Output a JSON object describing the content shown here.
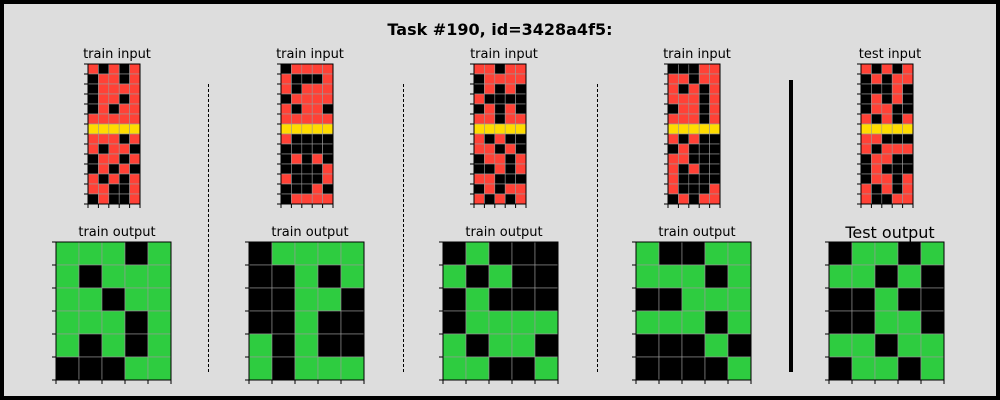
{
  "title": "Task #190, id=3428a4f5:",
  "labels": {
    "train_input": "train input",
    "train_output": "train output",
    "test_input": "test input",
    "test_output": "Test output"
  },
  "colors": {
    "0": "#000000",
    "1": "#ff4136",
    "2": "#2ecc40",
    "3": "#ffdc00"
  },
  "pairs": [
    {
      "input": [
        [
          1,
          0,
          1,
          0,
          1
        ],
        [
          0,
          1,
          1,
          0,
          1
        ],
        [
          0,
          1,
          1,
          1,
          1
        ],
        [
          0,
          1,
          1,
          0,
          1
        ],
        [
          0,
          1,
          0,
          1,
          1
        ],
        [
          1,
          1,
          1,
          1,
          1
        ],
        [
          3,
          3,
          3,
          3,
          3
        ],
        [
          1,
          1,
          1,
          0,
          1
        ],
        [
          1,
          0,
          1,
          1,
          0
        ],
        [
          0,
          1,
          1,
          0,
          1
        ],
        [
          0,
          1,
          0,
          1,
          0
        ],
        [
          1,
          0,
          1,
          0,
          1
        ],
        [
          1,
          1,
          0,
          0,
          1
        ],
        [
          0,
          1,
          0,
          0,
          1
        ]
      ],
      "output": [
        [
          2,
          2,
          2,
          0,
          2
        ],
        [
          2,
          0,
          2,
          2,
          2
        ],
        [
          2,
          2,
          0,
          2,
          2
        ],
        [
          2,
          2,
          2,
          0,
          2
        ],
        [
          2,
          0,
          2,
          0,
          2
        ],
        [
          0,
          0,
          0,
          2,
          2
        ]
      ]
    },
    {
      "input": [
        [
          0,
          1,
          1,
          1,
          1
        ],
        [
          1,
          0,
          0,
          0,
          1
        ],
        [
          1,
          0,
          1,
          1,
          1
        ],
        [
          0,
          1,
          1,
          1,
          1
        ],
        [
          1,
          0,
          1,
          1,
          0
        ],
        [
          1,
          1,
          1,
          1,
          1
        ],
        [
          3,
          3,
          3,
          3,
          3
        ],
        [
          1,
          0,
          0,
          0,
          0
        ],
        [
          0,
          0,
          0,
          0,
          0
        ],
        [
          0,
          1,
          0,
          1,
          0
        ],
        [
          0,
          0,
          0,
          0,
          1
        ],
        [
          1,
          0,
          0,
          0,
          1
        ],
        [
          0,
          0,
          0,
          1,
          0
        ],
        [
          0,
          1,
          1,
          1,
          1
        ]
      ],
      "output": [
        [
          0,
          2,
          2,
          2,
          2
        ],
        [
          0,
          0,
          2,
          0,
          2
        ],
        [
          0,
          0,
          2,
          2,
          0
        ],
        [
          0,
          0,
          2,
          0,
          0
        ],
        [
          2,
          0,
          2,
          0,
          0
        ],
        [
          2,
          0,
          2,
          2,
          2
        ]
      ]
    },
    {
      "input": [
        [
          1,
          1,
          0,
          1,
          1
        ],
        [
          0,
          1,
          1,
          1,
          1
        ],
        [
          0,
          1,
          0,
          1,
          0
        ],
        [
          1,
          0,
          0,
          0,
          0
        ],
        [
          0,
          1,
          0,
          1,
          0
        ],
        [
          1,
          1,
          0,
          1,
          1
        ],
        [
          3,
          3,
          3,
          3,
          3
        ],
        [
          1,
          0,
          1,
          0,
          0
        ],
        [
          1,
          1,
          0,
          1,
          0
        ],
        [
          0,
          1,
          1,
          0,
          1
        ],
        [
          0,
          0,
          1,
          0,
          1
        ],
        [
          1,
          1,
          0,
          0,
          0
        ],
        [
          0,
          1,
          0,
          1,
          1
        ],
        [
          1,
          0,
          1,
          0,
          1
        ]
      ],
      "output": [
        [
          0,
          2,
          0,
          0,
          0
        ],
        [
          2,
          0,
          2,
          0,
          0
        ],
        [
          0,
          2,
          0,
          0,
          0
        ],
        [
          0,
          2,
          2,
          2,
          2
        ],
        [
          2,
          0,
          2,
          2,
          0
        ],
        [
          2,
          2,
          0,
          0,
          2
        ]
      ]
    },
    {
      "input": [
        [
          0,
          0,
          0,
          1,
          1
        ],
        [
          1,
          1,
          0,
          1,
          1
        ],
        [
          1,
          0,
          1,
          0,
          1
        ],
        [
          1,
          1,
          1,
          0,
          1
        ],
        [
          0,
          1,
          1,
          0,
          1
        ],
        [
          1,
          1,
          1,
          0,
          1
        ],
        [
          3,
          3,
          3,
          3,
          3
        ],
        [
          1,
          0,
          1,
          0,
          0
        ],
        [
          0,
          1,
          0,
          0,
          0
        ],
        [
          1,
          1,
          0,
          0,
          0
        ],
        [
          1,
          0,
          1,
          0,
          0
        ],
        [
          1,
          0,
          0,
          0,
          0
        ],
        [
          1,
          0,
          0,
          0,
          1
        ],
        [
          0,
          1,
          0,
          1,
          1
        ]
      ],
      "output": [
        [
          2,
          0,
          0,
          2,
          2
        ],
        [
          2,
          2,
          2,
          0,
          2
        ],
        [
          0,
          0,
          2,
          2,
          2
        ],
        [
          2,
          2,
          2,
          0,
          2
        ],
        [
          0,
          0,
          0,
          2,
          0
        ],
        [
          0,
          0,
          0,
          0,
          2
        ]
      ]
    }
  ],
  "test": {
    "input": [
      [
        1,
        0,
        1,
        0,
        1
      ],
      [
        0,
        1,
        0,
        1,
        1
      ],
      [
        0,
        0,
        0,
        1,
        0
      ],
      [
        0,
        1,
        0,
        1,
        0
      ],
      [
        0,
        1,
        1,
        0,
        0
      ],
      [
        1,
        0,
        1,
        0,
        1
      ],
      [
        3,
        3,
        3,
        3,
        3
      ],
      [
        1,
        1,
        0,
        0,
        0
      ],
      [
        1,
        0,
        1,
        1,
        1
      ],
      [
        0,
        1,
        1,
        0,
        0
      ],
      [
        0,
        1,
        0,
        0,
        0
      ],
      [
        0,
        1,
        1,
        0,
        1
      ],
      [
        1,
        0,
        1,
        0,
        1
      ],
      [
        1,
        0,
        0,
        1,
        1
      ]
    ],
    "output": [
      [
        0,
        2,
        2,
        0,
        2
      ],
      [
        2,
        2,
        0,
        2,
        0
      ],
      [
        0,
        0,
        2,
        0,
        0
      ],
      [
        0,
        0,
        2,
        2,
        0
      ],
      [
        2,
        2,
        0,
        2,
        2
      ],
      [
        0,
        2,
        2,
        0,
        2
      ]
    ]
  }
}
